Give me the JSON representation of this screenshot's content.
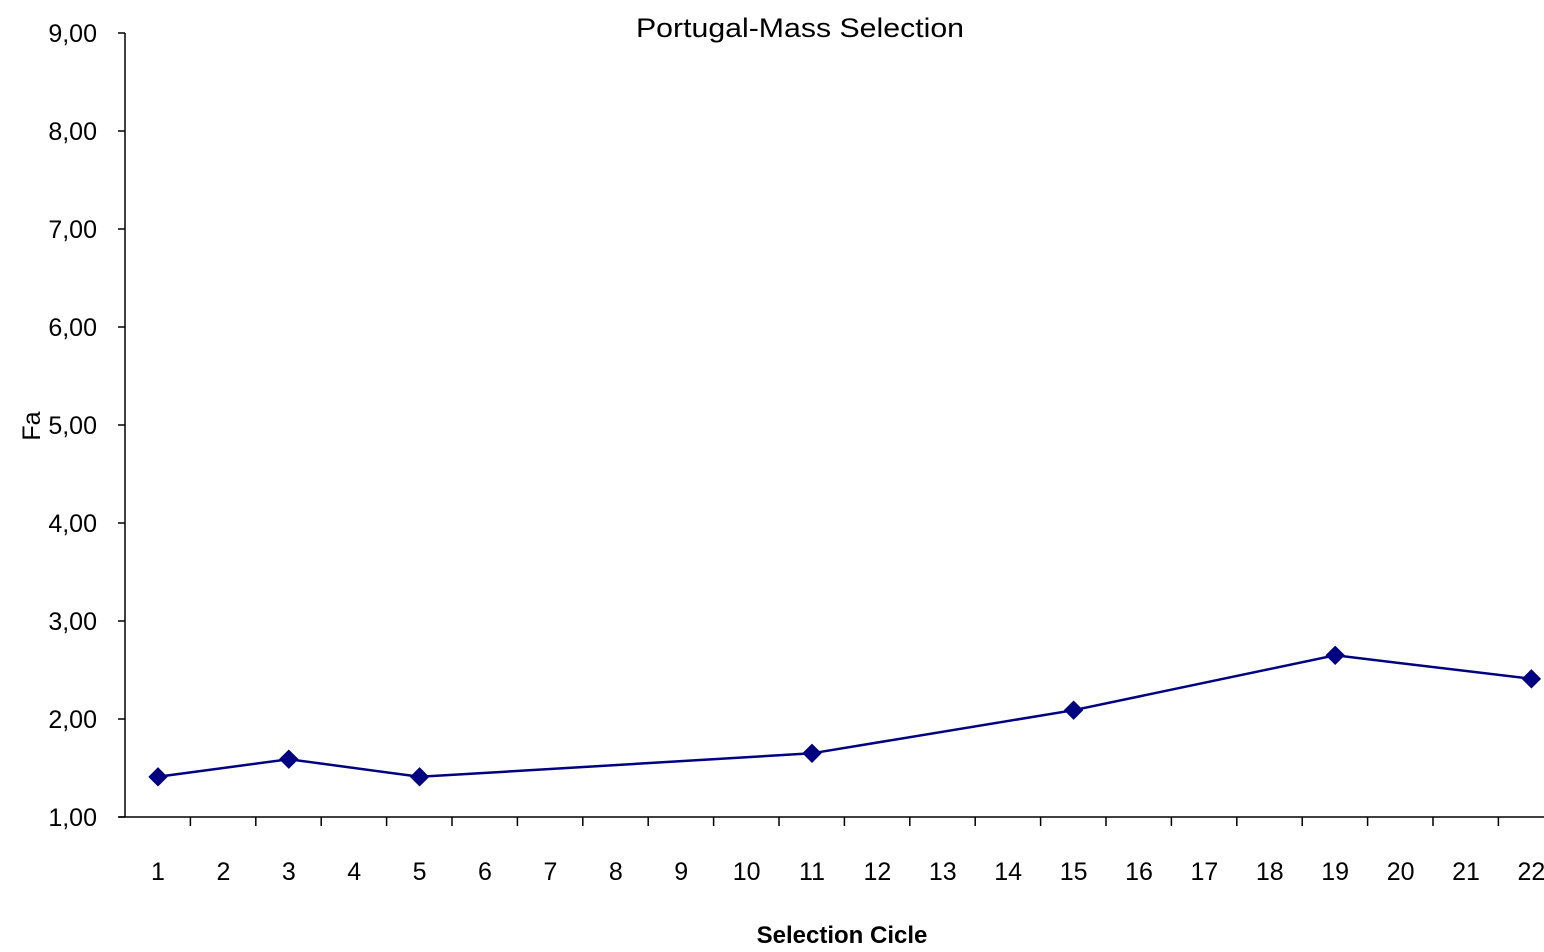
{
  "chart_data": {
    "type": "line",
    "title": "Portugal-Mass Selection",
    "xlabel": "Selection Cicle",
    "ylabel": "Fa",
    "categories": [
      "1",
      "2",
      "3",
      "4",
      "5",
      "6",
      "7",
      "8",
      "9",
      "10",
      "11",
      "12",
      "13",
      "14",
      "15",
      "16",
      "17",
      "18",
      "19",
      "20",
      "21",
      "22"
    ],
    "y_tick_labels": [
      "1,00",
      "2,00",
      "3,00",
      "4,00",
      "5,00",
      "6,00",
      "7,00",
      "8,00",
      "9,00"
    ],
    "ylim": [
      1,
      9
    ],
    "grid": false,
    "legend": "none",
    "series": [
      {
        "points": [
          {
            "x": "1",
            "y": 1.41
          },
          {
            "x": "3",
            "y": 1.59
          },
          {
            "x": "5",
            "y": 1.41
          },
          {
            "x": "11",
            "y": 1.65
          },
          {
            "x": "15",
            "y": 2.09
          },
          {
            "x": "19",
            "y": 2.65
          },
          {
            "x": "22",
            "y": 2.41
          }
        ],
        "color": "#000080"
      }
    ],
    "axis_color": "#000000"
  }
}
